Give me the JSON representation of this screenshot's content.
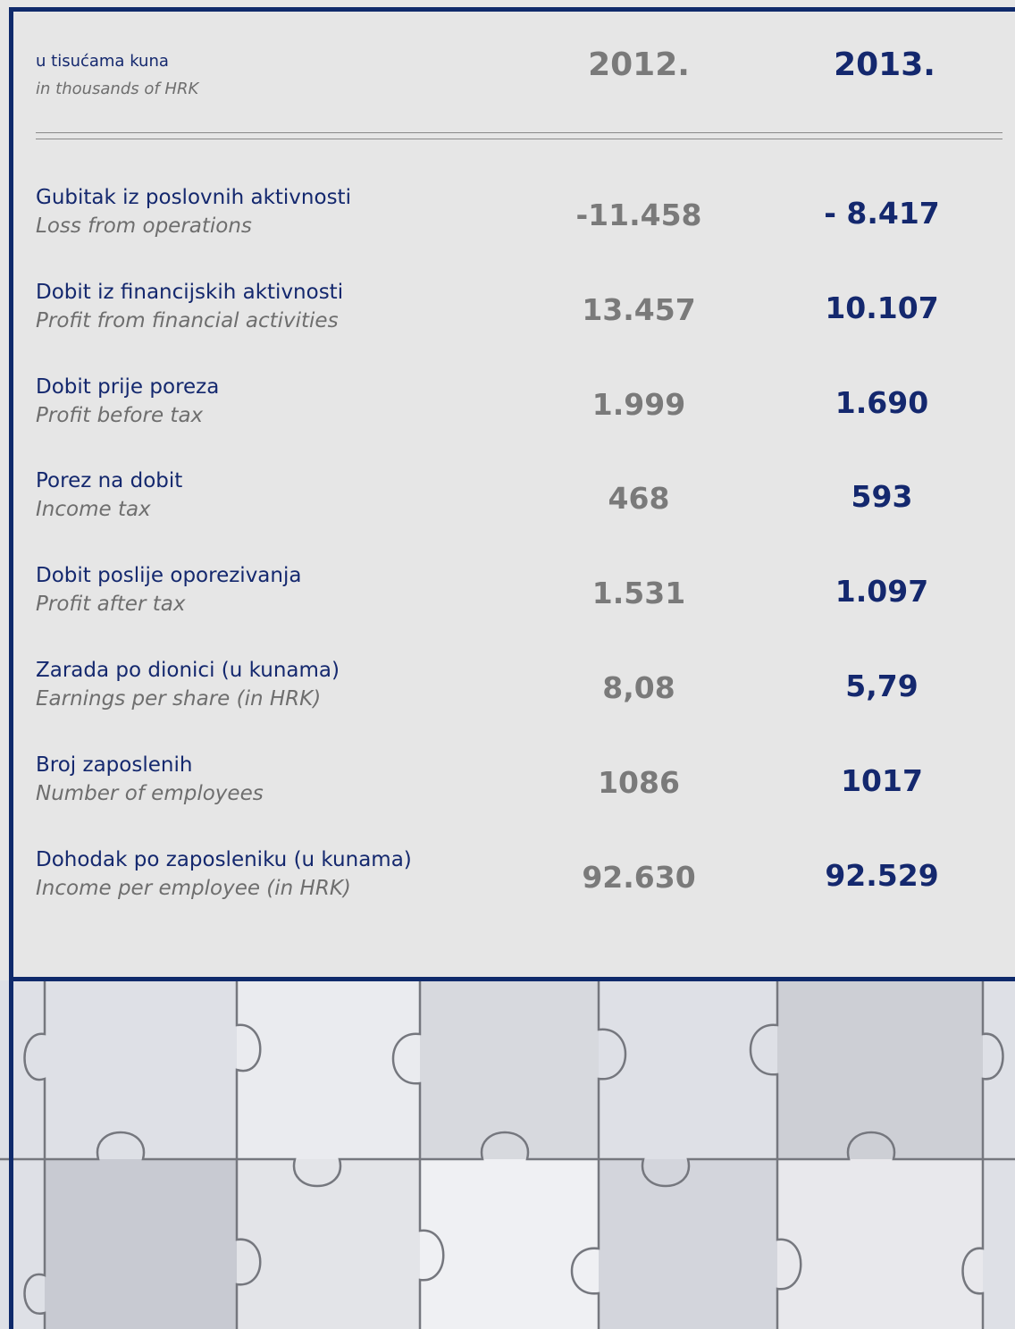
{
  "header": {
    "unit_hr": "u tisućama kuna",
    "unit_en": "in thousands of HRK",
    "years": [
      "2012.",
      "2013."
    ]
  },
  "table": {
    "rows": [
      {
        "label_hr": "Gubitak iz poslovnih aktivnosti",
        "label_en": "Loss from operations",
        "values": [
          "-11.458",
          "- 8.417"
        ]
      },
      {
        "label_hr": "Dobit iz financijskih aktivnosti",
        "label_en": "Profit from financial activities",
        "values": [
          "13.457",
          "10.107"
        ]
      },
      {
        "label_hr": "Dobit prije poreza",
        "label_en": "Profit before tax",
        "values": [
          "1.999",
          "1.690"
        ]
      },
      {
        "label_hr": "Porez na dobit",
        "label_en": "Income tax",
        "values": [
          "468",
          "593"
        ]
      },
      {
        "label_hr": "Dobit poslije oporezivanja",
        "label_en": "Profit after tax",
        "values": [
          "1.531",
          "1.097"
        ]
      },
      {
        "label_hr": "Zarada po dionici (u kunama)",
        "label_en": "Earnings per share (in HRK)",
        "values": [
          "8,08",
          "5,79"
        ]
      },
      {
        "label_hr": "Broj zaposlenih",
        "label_en": "Number of employees",
        "values": [
          "1086",
          "1017"
        ]
      },
      {
        "label_hr": "Dohodak po zaposleniku (u kunama)",
        "label_en": "Income per employee (in HRK)",
        "values": [
          "92.630",
          "92.529"
        ]
      }
    ]
  }
}
